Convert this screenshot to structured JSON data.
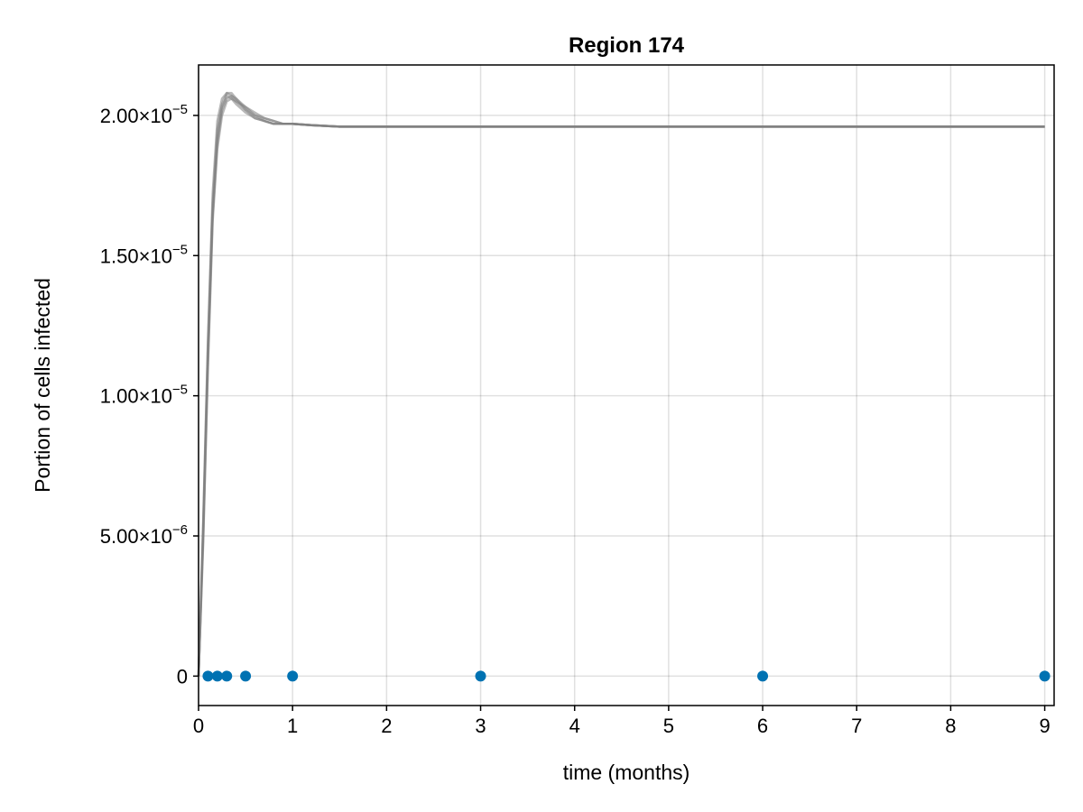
{
  "chart_data": {
    "type": "line",
    "title": "Region 174",
    "xlabel": "time (months)",
    "ylabel": "Portion of cells infected",
    "xlim": [
      0,
      9.1
    ],
    "ylim": [
      -1.05e-06,
      2.18e-05
    ],
    "grid": true,
    "x_ticks": [
      {
        "value": 0,
        "label": "0"
      },
      {
        "value": 1,
        "label": "1"
      },
      {
        "value": 2,
        "label": "2"
      },
      {
        "value": 3,
        "label": "3"
      },
      {
        "value": 4,
        "label": "4"
      },
      {
        "value": 5,
        "label": "5"
      },
      {
        "value": 6,
        "label": "6"
      },
      {
        "value": 7,
        "label": "7"
      },
      {
        "value": 8,
        "label": "8"
      },
      {
        "value": 9,
        "label": "9"
      }
    ],
    "y_ticks": [
      {
        "value": 0,
        "mantissa": "0",
        "exponent": ""
      },
      {
        "value": 5e-06,
        "mantissa": "5.00×10",
        "exponent": "−6"
      },
      {
        "value": 1e-05,
        "mantissa": "1.00×10",
        "exponent": "−5"
      },
      {
        "value": 1.5e-05,
        "mantissa": "1.50×10",
        "exponent": "−5"
      },
      {
        "value": 2e-05,
        "mantissa": "2.00×10",
        "exponent": "−5"
      }
    ],
    "series": [
      {
        "kind": "simulation-ensemble",
        "color": "#7f7f7f",
        "x": [
          0,
          0.05,
          0.1,
          0.15,
          0.2,
          0.25,
          0.3,
          0.35,
          0.4,
          0.5,
          0.6,
          0.7,
          0.8,
          0.9,
          1.0,
          1.2,
          1.5,
          2,
          3,
          4,
          5,
          6,
          7,
          8,
          9
        ],
        "members": [
          [
            0,
            5.2e-06,
            1.15e-05,
            1.65e-05,
            1.92e-05,
            2.03e-05,
            2.07e-05,
            2.06e-05,
            2.04e-05,
            2.01e-05,
            1.99e-05,
            1.98e-05,
            1.97e-05,
            1.97e-05,
            1.97e-05,
            1.965e-05,
            1.96e-05,
            1.96e-05,
            1.96e-05,
            1.96e-05,
            1.96e-05,
            1.96e-05,
            1.96e-05,
            1.96e-05,
            1.96e-05
          ],
          [
            0,
            5.6e-06,
            1.2e-05,
            1.72e-05,
            1.98e-05,
            2.06e-05,
            2.08e-05,
            2.07e-05,
            2.05e-05,
            2.02e-05,
            1.99e-05,
            1.98e-05,
            1.97e-05,
            1.97e-05,
            1.97e-05,
            1.965e-05,
            1.96e-05,
            1.96e-05,
            1.96e-05,
            1.96e-05,
            1.96e-05,
            1.96e-05,
            1.96e-05,
            1.96e-05,
            1.96e-05
          ],
          [
            0,
            4.8e-06,
            1.1e-05,
            1.62e-05,
            1.88e-05,
            2e-05,
            2.05e-05,
            2.06e-05,
            2.05e-05,
            2.03e-05,
            2e-05,
            1.99e-05,
            1.98e-05,
            1.97e-05,
            1.97e-05,
            1.965e-05,
            1.96e-05,
            1.96e-05,
            1.96e-05,
            1.96e-05,
            1.96e-05,
            1.96e-05,
            1.96e-05,
            1.96e-05,
            1.96e-05
          ],
          [
            0,
            5.4e-06,
            1.18e-05,
            1.68e-05,
            1.95e-05,
            2.04e-05,
            2.08e-05,
            2.08e-05,
            2.06e-05,
            2.02e-05,
            2e-05,
            1.98e-05,
            1.97e-05,
            1.97e-05,
            1.97e-05,
            1.965e-05,
            1.96e-05,
            1.96e-05,
            1.96e-05,
            1.96e-05,
            1.96e-05,
            1.96e-05,
            1.96e-05,
            1.96e-05,
            1.96e-05
          ],
          [
            0,
            5e-06,
            1.12e-05,
            1.64e-05,
            1.9e-05,
            2.02e-05,
            2.06e-05,
            2.07e-05,
            2.06e-05,
            2.03e-05,
            2.01e-05,
            1.99e-05,
            1.98e-05,
            1.97e-05,
            1.97e-05,
            1.965e-05,
            1.96e-05,
            1.96e-05,
            1.96e-05,
            1.96e-05,
            1.96e-05,
            1.96e-05,
            1.96e-05,
            1.96e-05,
            1.96e-05
          ]
        ]
      },
      {
        "kind": "observations",
        "color": "#0072b2",
        "x": [
          0.1,
          0.2,
          0.3,
          0.5,
          1,
          3,
          6,
          9
        ],
        "y": [
          0,
          0,
          0,
          0,
          0,
          0,
          0,
          0
        ]
      }
    ]
  }
}
